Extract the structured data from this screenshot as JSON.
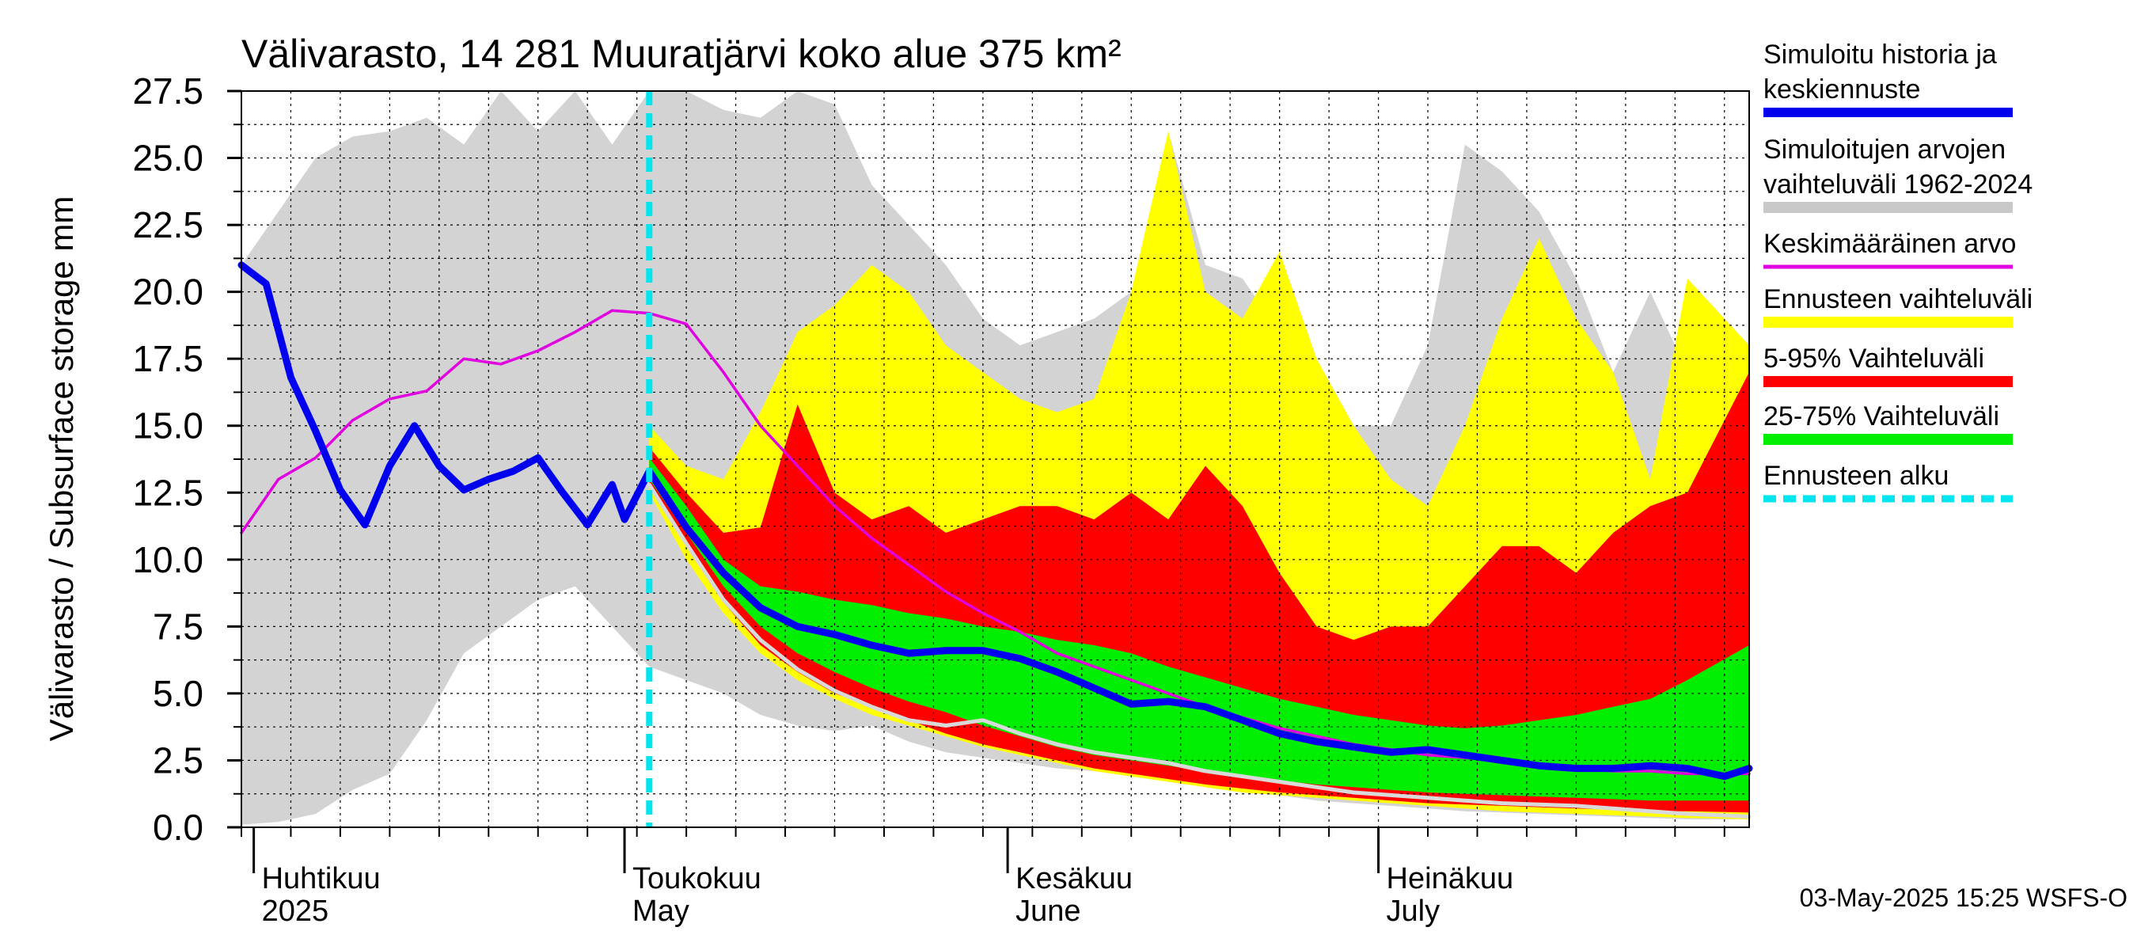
{
  "chart_data": {
    "type": "area",
    "title": "Välivarasto, 14 281 Muuratjärvi koko alue 375 km²",
    "ylabel": "Välivarasto / Subsurface storage  mm",
    "ylim": [
      0,
      27.5
    ],
    "yticks": [
      "0.0",
      "2.5",
      "5.0",
      "7.5",
      "10.0",
      "12.5",
      "15.0",
      "17.5",
      "20.0",
      "22.5",
      "25.0",
      "27.5"
    ],
    "x_start": "2025-03-31",
    "x_end": "2025-07-31",
    "forecast_start": "2025-05-03",
    "grid": true,
    "legend_position": "right",
    "month_labels": [
      {
        "date": "2025-04-01",
        "fi": "Huhtikuu",
        "en": "2025"
      },
      {
        "date": "2025-05-01",
        "fi": "Toukokuu",
        "en": "May"
      },
      {
        "date": "2025-06-01",
        "fi": "Kesäkuu",
        "en": "June"
      },
      {
        "date": "2025-07-01",
        "fi": "Heinäkuu",
        "en": "July"
      }
    ],
    "footer": "03-May-2025 15:25 WSFS-O",
    "legend": [
      {
        "label": "Simuloitu historia ja keskiennuste",
        "lines": [
          "Simuloitu historia ja",
          "keskiennuste"
        ],
        "color": "#0000ee"
      },
      {
        "label": "Simuloitujen arvojen vaihteluväli 1962-2024",
        "lines": [
          "Simuloitujen arvojen",
          "vaihteluväli 1962-2024"
        ],
        "color": "#c8c8c8"
      },
      {
        "label": "Keskimääräinen arvo",
        "lines": [
          "Keskimääräinen arvo"
        ],
        "color": "#e000e0"
      },
      {
        "label": "Ennusteen vaihteluväli",
        "lines": [
          "Ennusteen vaihteluväli"
        ],
        "color": "#ffff00"
      },
      {
        "label": "5-95% Vaihteluväli",
        "lines": [
          "5-95% Vaihteluväli"
        ],
        "color": "#ff0000"
      },
      {
        "label": "25-75% Vaihteluväli",
        "lines": [
          "25-75% Vaihteluväli"
        ],
        "color": "#00ee00"
      },
      {
        "label": "Ennusteen alku",
        "lines": [
          "Ennusteen alku"
        ],
        "color": "#00e5ee"
      }
    ],
    "series": [
      {
        "name": "Simuloitujen arvojen vaihteluväli 1962-2024",
        "kind": "band",
        "color": "#d3d3d3",
        "x": [
          "2025-03-31",
          "2025-04-03",
          "2025-04-06",
          "2025-04-09",
          "2025-04-12",
          "2025-04-15",
          "2025-04-18",
          "2025-04-21",
          "2025-04-24",
          "2025-04-27",
          "2025-04-30",
          "2025-05-03",
          "2025-05-06",
          "2025-05-09",
          "2025-05-12",
          "2025-05-15",
          "2025-05-18",
          "2025-05-21",
          "2025-05-24",
          "2025-05-27",
          "2025-05-30",
          "2025-06-02",
          "2025-06-05",
          "2025-06-08",
          "2025-06-11",
          "2025-06-14",
          "2025-06-17",
          "2025-06-20",
          "2025-06-23",
          "2025-06-26",
          "2025-06-29",
          "2025-07-02",
          "2025-07-05",
          "2025-07-08",
          "2025-07-11",
          "2025-07-14",
          "2025-07-17",
          "2025-07-20",
          "2025-07-23",
          "2025-07-26",
          "2025-07-31"
        ],
        "low": [
          0.1,
          0.2,
          0.5,
          1.4,
          2.0,
          4.0,
          6.5,
          7.5,
          8.5,
          9.0,
          7.5,
          6.0,
          5.5,
          5.0,
          4.2,
          3.8,
          3.6,
          3.8,
          3.2,
          2.8,
          2.6,
          2.4,
          2.2,
          2.1,
          1.9,
          1.7,
          1.5,
          1.3,
          1.2,
          1.0,
          0.9,
          0.8,
          0.7,
          0.6,
          0.55,
          0.5,
          0.45,
          0.4,
          0.35,
          0.3,
          0.3
        ],
        "high": [
          21.0,
          23.0,
          25.0,
          25.8,
          26.0,
          26.5,
          25.5,
          27.5,
          26.0,
          27.5,
          25.5,
          27.5,
          27.5,
          26.8,
          26.5,
          27.5,
          27.0,
          24.0,
          22.5,
          21.0,
          19.0,
          18.0,
          18.5,
          19.0,
          20.0,
          26.0,
          21.0,
          20.5,
          18.5,
          17.0,
          15.0,
          15.0,
          18.0,
          25.5,
          24.5,
          23.0,
          20.5,
          17.0,
          20.0,
          17.0,
          18.0
        ]
      },
      {
        "name": "Ennusteen vaihteluväli",
        "kind": "band",
        "color": "#ffff00",
        "x": [
          "2025-05-03",
          "2025-05-06",
          "2025-05-09",
          "2025-05-12",
          "2025-05-15",
          "2025-05-18",
          "2025-05-21",
          "2025-05-24",
          "2025-05-27",
          "2025-05-30",
          "2025-06-02",
          "2025-06-05",
          "2025-06-08",
          "2025-06-11",
          "2025-06-14",
          "2025-06-17",
          "2025-06-20",
          "2025-06-23",
          "2025-06-26",
          "2025-06-29",
          "2025-07-02",
          "2025-07-05",
          "2025-07-08",
          "2025-07-11",
          "2025-07-14",
          "2025-07-17",
          "2025-07-20",
          "2025-07-23",
          "2025-07-26",
          "2025-07-31"
        ],
        "low": [
          12.5,
          10.0,
          8.0,
          6.5,
          5.5,
          4.8,
          4.2,
          3.8,
          3.4,
          3.0,
          2.7,
          2.4,
          2.1,
          1.9,
          1.7,
          1.5,
          1.3,
          1.2,
          1.1,
          1.0,
          0.9,
          0.8,
          0.7,
          0.6,
          0.55,
          0.5,
          0.45,
          0.4,
          0.35,
          0.3
        ],
        "high": [
          15.0,
          13.5,
          13.0,
          15.5,
          18.5,
          19.5,
          21.0,
          20.0,
          18.0,
          17.0,
          16.0,
          15.5,
          16.0,
          20.0,
          26.0,
          20.0,
          19.0,
          21.5,
          17.5,
          15.0,
          13.0,
          12.0,
          15.0,
          19.0,
          22.0,
          19.0,
          17.0,
          13.0,
          20.5,
          18.0
        ]
      },
      {
        "name": "5-95% Vaihteluväli",
        "kind": "band",
        "color": "#ff0000",
        "x": [
          "2025-05-03",
          "2025-05-06",
          "2025-05-09",
          "2025-05-12",
          "2025-05-15",
          "2025-05-18",
          "2025-05-21",
          "2025-05-24",
          "2025-05-27",
          "2025-05-30",
          "2025-06-02",
          "2025-06-05",
          "2025-06-08",
          "2025-06-11",
          "2025-06-14",
          "2025-06-17",
          "2025-06-20",
          "2025-06-23",
          "2025-06-26",
          "2025-06-29",
          "2025-07-02",
          "2025-07-05",
          "2025-07-08",
          "2025-07-11",
          "2025-07-14",
          "2025-07-17",
          "2025-07-20",
          "2025-07-23",
          "2025-07-26",
          "2025-07-31"
        ],
        "low": [
          12.8,
          10.5,
          8.4,
          6.8,
          5.8,
          5.0,
          4.5,
          4.0,
          3.5,
          3.1,
          2.8,
          2.5,
          2.2,
          2.0,
          1.8,
          1.6,
          1.45,
          1.3,
          1.2,
          1.1,
          1.0,
          0.9,
          0.85,
          0.8,
          0.75,
          0.7,
          0.65,
          0.6,
          0.6,
          0.55
        ],
        "high": [
          14.2,
          12.5,
          11.0,
          11.2,
          15.8,
          12.5,
          11.5,
          12.0,
          11.0,
          11.5,
          12.0,
          12.0,
          11.5,
          12.5,
          11.5,
          13.5,
          12.0,
          9.5,
          7.5,
          7.0,
          7.5,
          7.5,
          9.0,
          10.5,
          10.5,
          9.5,
          11.0,
          12.0,
          12.5,
          17.0
        ]
      },
      {
        "name": "25-75% Vaihteluväli",
        "kind": "band",
        "color": "#00ee00",
        "x": [
          "2025-05-03",
          "2025-05-06",
          "2025-05-09",
          "2025-05-12",
          "2025-05-15",
          "2025-05-18",
          "2025-05-21",
          "2025-05-24",
          "2025-05-27",
          "2025-05-30",
          "2025-06-02",
          "2025-06-05",
          "2025-06-08",
          "2025-06-11",
          "2025-06-14",
          "2025-06-17",
          "2025-06-20",
          "2025-06-23",
          "2025-06-26",
          "2025-06-29",
          "2025-07-02",
          "2025-07-05",
          "2025-07-08",
          "2025-07-11",
          "2025-07-14",
          "2025-07-17",
          "2025-07-20",
          "2025-07-23",
          "2025-07-26",
          "2025-07-31"
        ],
        "low": [
          13.0,
          11.0,
          9.0,
          7.5,
          6.5,
          5.8,
          5.2,
          4.7,
          4.3,
          3.8,
          3.4,
          3.0,
          2.7,
          2.5,
          2.3,
          2.1,
          1.9,
          1.75,
          1.6,
          1.5,
          1.4,
          1.3,
          1.25,
          1.2,
          1.15,
          1.1,
          1.05,
          1.0,
          1.0,
          1.0
        ],
        "high": [
          13.8,
          12.0,
          10.0,
          9.0,
          8.8,
          8.5,
          8.3,
          8.0,
          7.8,
          7.5,
          7.3,
          7.0,
          6.8,
          6.5,
          6.0,
          5.6,
          5.2,
          4.8,
          4.5,
          4.2,
          4.0,
          3.8,
          3.7,
          3.8,
          4.0,
          4.2,
          4.5,
          4.8,
          5.5,
          6.8
        ]
      },
      {
        "name": "Keskimääräinen arvo",
        "kind": "line",
        "color": "#e000e0",
        "x": [
          "2025-03-31",
          "2025-04-03",
          "2025-04-06",
          "2025-04-09",
          "2025-04-12",
          "2025-04-15",
          "2025-04-18",
          "2025-04-21",
          "2025-04-24",
          "2025-04-27",
          "2025-04-30",
          "2025-05-03",
          "2025-05-06",
          "2025-05-09",
          "2025-05-12",
          "2025-05-15",
          "2025-05-18",
          "2025-05-21",
          "2025-05-24",
          "2025-05-27",
          "2025-05-30",
          "2025-06-02",
          "2025-06-05",
          "2025-06-08",
          "2025-06-11",
          "2025-06-14",
          "2025-06-17",
          "2025-06-20",
          "2025-06-23",
          "2025-06-26",
          "2025-06-29",
          "2025-07-02",
          "2025-07-05",
          "2025-07-08",
          "2025-07-11",
          "2025-07-14",
          "2025-07-17",
          "2025-07-20",
          "2025-07-23",
          "2025-07-26",
          "2025-07-31"
        ],
        "y": [
          11.0,
          13.0,
          13.8,
          15.2,
          16.0,
          16.3,
          17.5,
          17.3,
          17.8,
          18.5,
          19.3,
          19.2,
          18.8,
          17.0,
          15.0,
          13.5,
          12.0,
          10.8,
          9.8,
          8.8,
          8.0,
          7.3,
          6.5,
          6.0,
          5.5,
          5.0,
          4.5,
          4.1,
          3.7,
          3.4,
          3.1,
          2.9,
          2.7,
          2.6,
          2.5,
          2.3,
          2.2,
          2.1,
          2.1,
          2.0,
          2.0
        ]
      },
      {
        "name": "Simuloitu historia ja keskiennuste",
        "kind": "line",
        "color": "#0000ee",
        "x": [
          "2025-03-31",
          "2025-04-02",
          "2025-04-04",
          "2025-04-06",
          "2025-04-08",
          "2025-04-10",
          "2025-04-12",
          "2025-04-14",
          "2025-04-16",
          "2025-04-18",
          "2025-04-20",
          "2025-04-22",
          "2025-04-24",
          "2025-04-26",
          "2025-04-28",
          "2025-04-30",
          "2025-05-01",
          "2025-05-03",
          "2025-05-06",
          "2025-05-09",
          "2025-05-12",
          "2025-05-15",
          "2025-05-18",
          "2025-05-21",
          "2025-05-24",
          "2025-05-27",
          "2025-05-30",
          "2025-06-02",
          "2025-06-05",
          "2025-06-08",
          "2025-06-11",
          "2025-06-14",
          "2025-06-17",
          "2025-06-20",
          "2025-06-23",
          "2025-06-26",
          "2025-06-29",
          "2025-07-02",
          "2025-07-05",
          "2025-07-08",
          "2025-07-11",
          "2025-07-14",
          "2025-07-17",
          "2025-07-20",
          "2025-07-23",
          "2025-07-26",
          "2025-07-29",
          "2025-07-31"
        ],
        "y": [
          21.0,
          20.3,
          16.8,
          14.8,
          12.6,
          11.3,
          13.5,
          15.0,
          13.5,
          12.6,
          13.0,
          13.3,
          13.8,
          12.5,
          11.3,
          12.8,
          11.5,
          13.3,
          11.2,
          9.5,
          8.2,
          7.5,
          7.2,
          6.8,
          6.5,
          6.6,
          6.6,
          6.3,
          5.8,
          5.2,
          4.6,
          4.7,
          4.5,
          4.0,
          3.5,
          3.2,
          3.0,
          2.8,
          2.9,
          2.7,
          2.5,
          2.3,
          2.2,
          2.2,
          2.3,
          2.2,
          1.9,
          2.2
        ]
      },
      {
        "name": "",
        "kind": "line",
        "color": "#d9d9d9",
        "x": [
          "2025-05-03",
          "2025-05-06",
          "2025-05-09",
          "2025-05-12",
          "2025-05-15",
          "2025-05-18",
          "2025-05-21",
          "2025-05-24",
          "2025-05-27",
          "2025-05-30",
          "2025-06-02",
          "2025-06-05",
          "2025-06-08",
          "2025-06-11",
          "2025-06-14",
          "2025-06-17",
          "2025-06-20",
          "2025-06-23",
          "2025-06-26",
          "2025-06-29",
          "2025-07-02",
          "2025-07-05",
          "2025-07-08",
          "2025-07-11",
          "2025-07-14",
          "2025-07-17",
          "2025-07-20",
          "2025-07-23",
          "2025-07-26",
          "2025-07-31"
        ],
        "y": [
          12.8,
          10.6,
          8.5,
          7.0,
          5.9,
          5.1,
          4.5,
          4.0,
          3.8,
          4.0,
          3.5,
          3.1,
          2.8,
          2.6,
          2.4,
          2.1,
          1.9,
          1.7,
          1.5,
          1.3,
          1.2,
          1.1,
          1.0,
          0.9,
          0.85,
          0.8,
          0.7,
          0.6,
          0.5,
          0.4
        ]
      }
    ]
  }
}
